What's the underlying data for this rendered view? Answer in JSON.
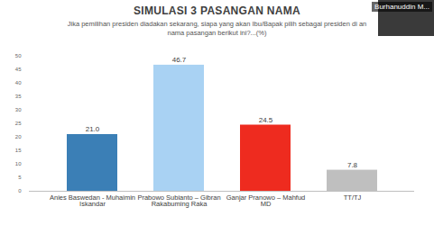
{
  "chart_data": {
    "type": "bar",
    "title": "SIMULASI 3 PASANGAN NAMA",
    "subtitle": [
      "Jika pemilihan presiden diadakan sekarang, siapa yang akan Ibu/Bapak pilih sebagai presiden di an",
      "nama pasangan berikut ini?...(%)"
    ],
    "annotations": [
      "Burhanuddin M..."
    ],
    "categories": [
      "Anies Baswedan - Muhaimin Iskandar",
      "Prabowo Subianto – Gibran Rakabuming Raka",
      "Ganjar Pranowo – Mahfud MD",
      "TT/TJ"
    ],
    "values": [
      21.0,
      46.7,
      24.5,
      7.8
    ],
    "value_labels": [
      "21.0",
      "46.7",
      "24.5",
      "7.8"
    ],
    "colors": [
      "#3b7fb6",
      "#a9d2f3",
      "#ee2b1f",
      "#bfbfbf"
    ],
    "ylim": [
      0,
      50
    ],
    "yticks": [
      0,
      5,
      10,
      15,
      20,
      25,
      30,
      35,
      40,
      45,
      50
    ],
    "grid": false,
    "data_labels": true
  }
}
